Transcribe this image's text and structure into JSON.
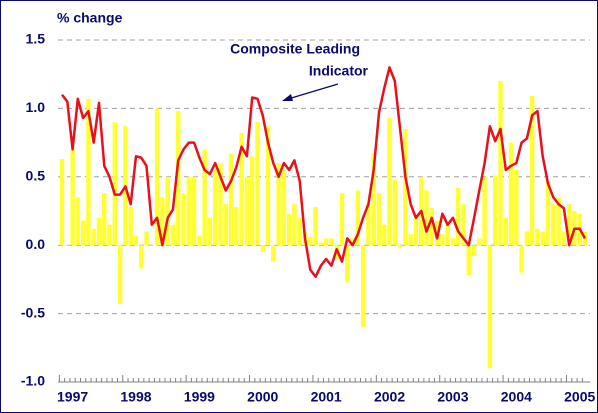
{
  "chart_data": {
    "type": "bar_line",
    "ylabel": "% change",
    "annotation": [
      "Composite Leading",
      "Indicator"
    ],
    "categories": [
      "1997",
      null,
      null,
      null,
      null,
      null,
      null,
      null,
      null,
      null,
      null,
      null,
      "1998",
      null,
      null,
      null,
      null,
      null,
      null,
      null,
      null,
      null,
      null,
      null,
      "1999",
      null,
      null,
      null,
      null,
      null,
      null,
      null,
      null,
      null,
      null,
      null,
      "2000",
      null,
      null,
      null,
      null,
      null,
      null,
      null,
      null,
      null,
      null,
      null,
      "2001",
      null,
      null,
      null,
      null,
      null,
      null,
      null,
      null,
      null,
      null,
      null,
      "2002",
      null,
      null,
      null,
      null,
      null,
      null,
      null,
      null,
      null,
      null,
      null,
      "2003",
      null,
      null,
      null,
      null,
      null,
      null,
      null,
      null,
      null,
      null,
      null,
      "2004",
      null,
      null,
      null,
      null,
      null,
      null,
      null,
      null,
      null,
      null,
      null,
      "2005",
      null,
      null,
      null
    ],
    "series": [
      {
        "type": "bar",
        "color": "#ffff33",
        "values": [
          0.63,
          0.0,
          0.7,
          0.35,
          0.18,
          1.07,
          0.12,
          0.2,
          0.38,
          0.15,
          0.9,
          -0.43,
          0.87,
          0.28,
          0.07,
          -0.17,
          0.1,
          0.0,
          1.0,
          0.35,
          0.5,
          0.15,
          0.98,
          0.38,
          0.5,
          0.5,
          0.07,
          0.7,
          0.2,
          0.55,
          0.6,
          0.3,
          0.67,
          0.28,
          0.82,
          0.5,
          0.65,
          0.9,
          -0.05,
          0.87,
          -0.12,
          0.6,
          0.55,
          0.23,
          0.3,
          0.2,
          0.1,
          0.06,
          0.28,
          0.02,
          0.05,
          0.05,
          -0.1,
          0.38,
          -0.27,
          0.05,
          0.4,
          -0.6,
          0.3,
          0.67,
          0.38,
          0.15,
          0.93,
          0.48,
          -0.02,
          0.85,
          0.08,
          0.22,
          0.5,
          0.4,
          0.27,
          0.18,
          0.08,
          0.15,
          0.05,
          0.42,
          0.3,
          -0.22,
          -0.08,
          0.05,
          0.5,
          -0.9,
          0.51,
          1.2,
          0.2,
          0.75,
          0.55,
          -0.2,
          0.1,
          1.09,
          0.12,
          0.1,
          0.47,
          0.3,
          0.35,
          0.1,
          0.3,
          0.25,
          0.23,
          0.1
        ]
      },
      {
        "type": "line",
        "name": "Composite Leading Indicator",
        "color": "#e8101a",
        "values": [
          1.1,
          1.05,
          0.7,
          1.07,
          0.93,
          0.98,
          0.75,
          1.04,
          0.58,
          0.5,
          0.37,
          0.37,
          0.43,
          0.3,
          0.65,
          0.64,
          0.58,
          0.15,
          0.2,
          0.0,
          0.2,
          0.26,
          0.62,
          0.7,
          0.75,
          0.75,
          0.64,
          0.55,
          0.52,
          0.6,
          0.5,
          0.4,
          0.47,
          0.57,
          0.72,
          0.65,
          1.08,
          1.07,
          0.95,
          0.75,
          0.6,
          0.5,
          0.6,
          0.55,
          0.62,
          0.47,
          0.05,
          -0.18,
          -0.23,
          -0.15,
          -0.1,
          -0.15,
          -0.03,
          -0.12,
          0.05,
          0.0,
          0.08,
          0.2,
          0.3,
          0.55,
          0.97,
          1.15,
          1.3,
          1.2,
          0.85,
          0.5,
          0.3,
          0.2,
          0.25,
          0.1,
          0.2,
          0.05,
          0.23,
          0.15,
          0.2,
          0.1,
          0.05,
          0.0,
          0.2,
          0.4,
          0.6,
          0.87,
          0.76,
          0.85,
          0.55,
          0.58,
          0.6,
          0.75,
          0.78,
          0.95,
          0.98,
          0.65,
          0.45,
          0.35,
          0.3,
          0.27,
          0.0,
          0.12,
          0.12,
          0.05
        ]
      }
    ],
    "ylim": [
      -1.0,
      1.5
    ],
    "yticks": [
      {
        "value": -1.0,
        "label": "-1.0"
      },
      -0.5,
      {
        "value": 0.0,
        "label": "0.0"
      },
      0.5,
      {
        "value": 1.0,
        "label": "1.0"
      },
      1.5
    ],
    "grid": true
  }
}
